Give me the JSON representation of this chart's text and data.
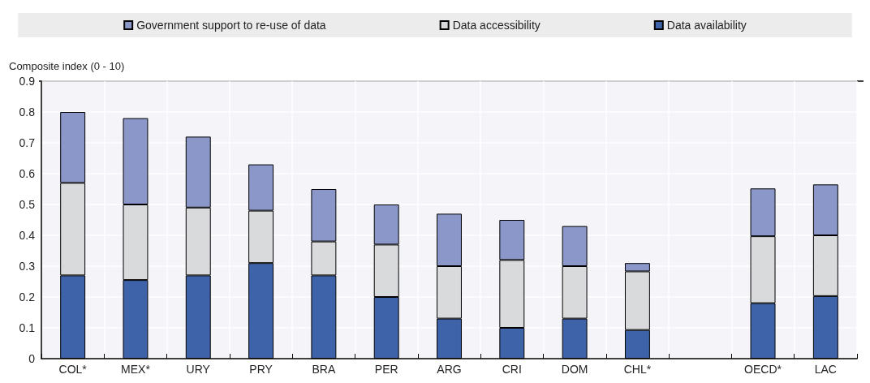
{
  "chart_data": {
    "type": "bar",
    "stacked": true,
    "ylabel": "Composite index (0 - 10)",
    "categories": [
      "COL*",
      "MEX*",
      "URY",
      "PRY",
      "BRA",
      "PER",
      "ARG",
      "CRI",
      "DOM",
      "CHL*",
      null,
      "OECD*",
      "LAC"
    ],
    "series": [
      {
        "name": "Data availability",
        "color": "#3f63a8",
        "values": [
          0.27,
          0.255,
          0.27,
          0.31,
          0.27,
          0.2,
          0.13,
          0.1,
          0.13,
          0.093,
          null,
          0.18,
          0.203
        ]
      },
      {
        "name": "Data accessibility",
        "color": "#d9dadc",
        "values": [
          0.3,
          0.245,
          0.22,
          0.17,
          0.11,
          0.17,
          0.17,
          0.22,
          0.17,
          0.19,
          null,
          0.217,
          0.197
        ]
      },
      {
        "name": "Government support to re-use of data",
        "color": "#8a97c8",
        "values": [
          0.23,
          0.28,
          0.23,
          0.15,
          0.17,
          0.13,
          0.17,
          0.13,
          0.13,
          0.027,
          null,
          0.155,
          0.165
        ]
      }
    ],
    "ylim": [
      0,
      0.9
    ],
    "yticks": [
      0,
      0.1,
      0.2,
      0.3,
      0.4,
      0.5,
      0.6,
      0.7,
      0.8,
      0.9
    ],
    "grid": true,
    "legend": "top"
  }
}
